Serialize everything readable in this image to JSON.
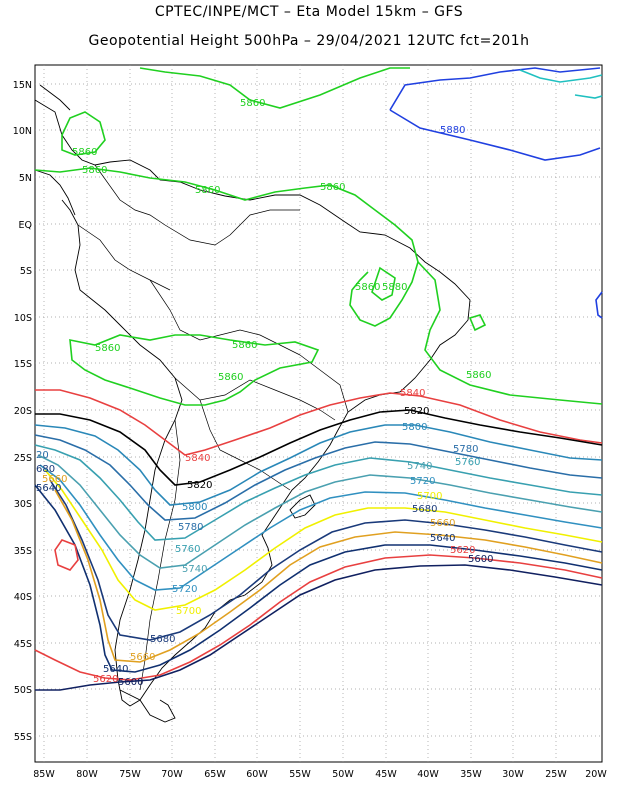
{
  "header": {
    "line1": "CPTEC/INPE/MCT –  Eta Model 15km – GFS",
    "line2": "Geopotential Height 500hPa – 29/04/2021 12UTC fct=201h"
  },
  "axes": {
    "lat_labels": [
      "15N",
      "10N",
      "5N",
      "EQ",
      "5S",
      "10S",
      "15S",
      "20S",
      "25S",
      "30S",
      "35S",
      "40S",
      "45S",
      "50S",
      "55S"
    ],
    "lon_labels": [
      "85W",
      "80W",
      "75W",
      "70W",
      "65W",
      "60W",
      "55W",
      "50W",
      "45W",
      "40W",
      "35W",
      "30W",
      "25W",
      "20W"
    ]
  },
  "colors": {
    "c5880": "#2040e0",
    "c5860": "#20d020",
    "c5840": "#e84040",
    "c5820": "#000000",
    "c5800": "#2a88b8",
    "c5780": "#2a6ea8",
    "c5760": "#38a0b0",
    "c5740": "#4aa0b0",
    "c5720": "#3090c0",
    "c5700": "#f0f000",
    "c5680": "#1a3a7a",
    "c5660": "#e0a020",
    "c5640": "#103070",
    "c5620": "#e84040",
    "c5600": "#102060",
    "cyan": "#20c0c0"
  },
  "contour_labels": [
    {
      "id": "l1",
      "text": "5860"
    },
    {
      "id": "l2",
      "text": "5860"
    },
    {
      "id": "l3",
      "text": "5860"
    },
    {
      "id": "l4",
      "text": "5860"
    },
    {
      "id": "l5",
      "text": "5860"
    },
    {
      "id": "l6",
      "text": "5880"
    },
    {
      "id": "l7",
      "text": "5860"
    },
    {
      "id": "l8",
      "text": "5880"
    },
    {
      "id": "l9",
      "text": "5860"
    },
    {
      "id": "l10",
      "text": "5860"
    },
    {
      "id": "l11",
      "text": "5860"
    },
    {
      "id": "l12",
      "text": "5860"
    },
    {
      "id": "l13",
      "text": "5840"
    },
    {
      "id": "l14",
      "text": "5820"
    },
    {
      "id": "l15",
      "text": "5800"
    },
    {
      "id": "l16",
      "text": "5780"
    },
    {
      "id": "l17",
      "text": "5760"
    },
    {
      "id": "l18",
      "text": "5740"
    },
    {
      "id": "l19",
      "text": "5720"
    },
    {
      "id": "l20",
      "text": "5700"
    },
    {
      "id": "l21",
      "text": "5680"
    },
    {
      "id": "l22",
      "text": "5660"
    },
    {
      "id": "l23",
      "text": "5640"
    },
    {
      "id": "l24",
      "text": "5620"
    },
    {
      "id": "l25",
      "text": "5600"
    },
    {
      "id": "l26",
      "text": "5840"
    },
    {
      "id": "l27",
      "text": "5820"
    },
    {
      "id": "l28",
      "text": "5800"
    },
    {
      "id": "l29",
      "text": "5780"
    },
    {
      "id": "l30",
      "text": "5760"
    },
    {
      "id": "l31",
      "text": "5740"
    },
    {
      "id": "l32",
      "text": "5720"
    },
    {
      "id": "l33",
      "text": "5700"
    },
    {
      "id": "l34",
      "text": "5680"
    },
    {
      "id": "l35",
      "text": "5660"
    },
    {
      "id": "l36",
      "text": "5640"
    },
    {
      "id": "l37",
      "text": "5620"
    },
    {
      "id": "l38",
      "text": "5600"
    },
    {
      "id": "l39",
      "text": "5640"
    },
    {
      "id": "l40",
      "text": "5620"
    },
    {
      "id": "l41",
      "text": "5600"
    },
    {
      "id": "l42",
      "text": "5680"
    },
    {
      "id": "l43",
      "text": "5660"
    },
    {
      "id": "l44",
      "text": "5720"
    },
    {
      "id": "l45",
      "text": "20"
    },
    {
      "id": "l46",
      "text": "680"
    },
    {
      "id": "l47",
      "text": "5640"
    },
    {
      "id": "l48",
      "text": "5660"
    }
  ]
}
